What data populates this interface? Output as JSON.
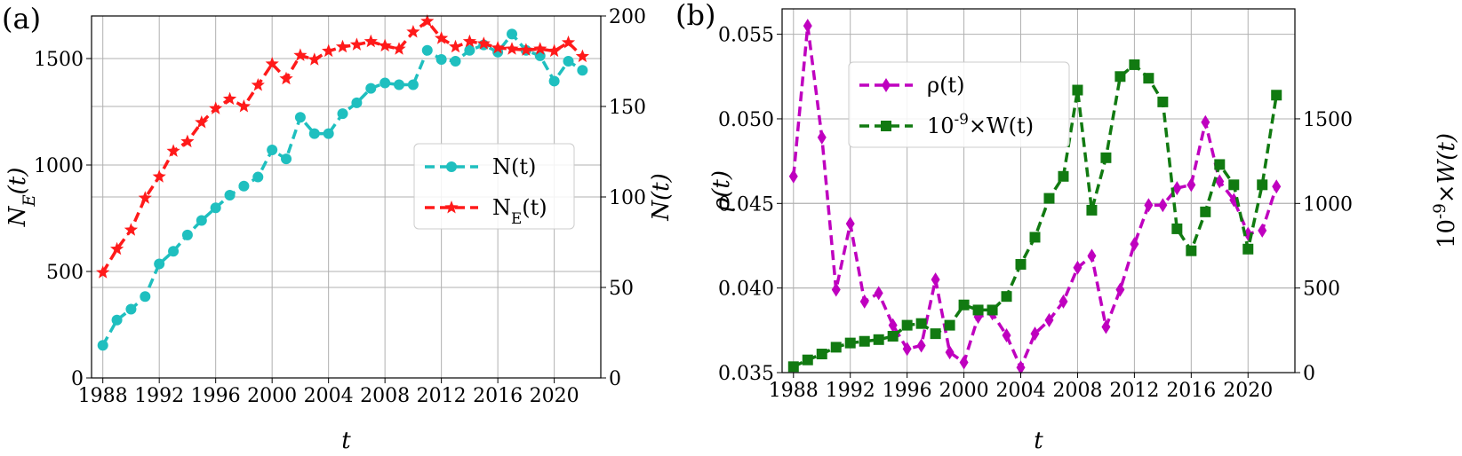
{
  "chart_data": [
    {
      "panel_label": "(a)",
      "type": "line",
      "xlabel": "t",
      "ylabel_left": "N_E(t)",
      "ylabel_right": "N(t)",
      "xlim": [
        1987.2,
        2023.3
      ],
      "ylim_left": [
        0,
        1700
      ],
      "ylim_right": [
        0,
        200
      ],
      "grid": true,
      "legend_position": "center-right",
      "x_ticks": [
        1988,
        1992,
        1996,
        2000,
        2004,
        2008,
        2012,
        2016,
        2020
      ],
      "y_ticks_left": [
        0,
        500,
        1000,
        1500
      ],
      "y_ticks_right": [
        0,
        50,
        100,
        150,
        200
      ],
      "x": [
        1988,
        1989,
        1990,
        1991,
        1992,
        1993,
        1994,
        1995,
        1996,
        1997,
        1998,
        1999,
        2000,
        2001,
        2002,
        2003,
        2004,
        2005,
        2006,
        2007,
        2008,
        2009,
        2010,
        2011,
        2012,
        2013,
        2014,
        2015,
        2016,
        2017,
        2018,
        2019,
        2020,
        2021,
        2022
      ],
      "series": [
        {
          "name": "N(t)",
          "legend_label": "N(t)",
          "axis": "right",
          "color": "#1fbfbf",
          "marker": "circle",
          "values": [
            18,
            32,
            38,
            45,
            63,
            70,
            79,
            87,
            94,
            101,
            106,
            111,
            126,
            121,
            144,
            135,
            135,
            146,
            152,
            160,
            163,
            162,
            162,
            181,
            176,
            175,
            181,
            184,
            180,
            190,
            181,
            178,
            164,
            175,
            170
          ]
        },
        {
          "name": "N_E(t)",
          "legend_label": "N_E(t)",
          "axis": "left",
          "color": "#ff1a1a",
          "marker": "star",
          "values": [
            495,
            605,
            695,
            845,
            945,
            1065,
            1110,
            1200,
            1265,
            1310,
            1275,
            1375,
            1475,
            1405,
            1515,
            1495,
            1535,
            1555,
            1565,
            1580,
            1560,
            1545,
            1625,
            1675,
            1595,
            1555,
            1580,
            1570,
            1550,
            1545,
            1540,
            1545,
            1535,
            1575,
            1510
          ]
        }
      ]
    },
    {
      "panel_label": "(b)",
      "type": "line",
      "xlabel": "t",
      "ylabel_left": "ρ(t)",
      "ylabel_right": "10^{-9}×W(t)",
      "xlim": [
        1987.2,
        2023.3
      ],
      "ylim_left": [
        0.035,
        0.0565
      ],
      "ylim_right": [
        0,
        2150
      ],
      "grid": true,
      "legend_position": "upper-left",
      "x_ticks": [
        1988,
        1992,
        1996,
        2000,
        2004,
        2008,
        2012,
        2016,
        2020
      ],
      "y_ticks_left": [
        0.035,
        0.04,
        0.045,
        0.05,
        0.055
      ],
      "y_tick_labels_left": [
        "0.035",
        "0.040",
        "0.045",
        "0.050",
        "0.055"
      ],
      "y_ticks_right": [
        0,
        500,
        1000,
        1500
      ],
      "x": [
        1988,
        1989,
        1990,
        1991,
        1992,
        1993,
        1994,
        1995,
        1996,
        1997,
        1998,
        1999,
        2000,
        2001,
        2002,
        2003,
        2004,
        2005,
        2006,
        2007,
        2008,
        2009,
        2010,
        2011,
        2012,
        2013,
        2014,
        2015,
        2016,
        2017,
        2018,
        2019,
        2020,
        2021,
        2022
      ],
      "series": [
        {
          "name": "rho(t)",
          "legend_label": "ρ(t)",
          "axis": "left",
          "color": "#bf00bf",
          "marker": "diamond",
          "values": [
            0.0466,
            0.0555,
            0.0489,
            0.0399,
            0.0438,
            0.0392,
            0.0397,
            0.0378,
            0.0364,
            0.0366,
            0.0405,
            0.0362,
            0.0356,
            0.0383,
            0.0385,
            0.0372,
            0.0353,
            0.0373,
            0.0381,
            0.0392,
            0.0412,
            0.0419,
            0.0377,
            0.0399,
            0.0426,
            0.0449,
            0.0449,
            0.0459,
            0.0461,
            0.0498,
            0.0463,
            0.0452,
            0.0432,
            0.0434,
            0.046
          ]
        },
        {
          "name": "W(t)",
          "legend_label": "10^{-9}×W(t)",
          "axis": "right",
          "color": "#117a11",
          "marker": "square",
          "values": [
            35,
            75,
            110,
            150,
            175,
            185,
            195,
            215,
            280,
            290,
            230,
            280,
            400,
            370,
            370,
            450,
            640,
            800,
            1030,
            1160,
            1670,
            960,
            1270,
            1750,
            1820,
            1740,
            1600,
            850,
            720,
            950,
            1230,
            1110,
            730,
            1110,
            1640
          ]
        }
      ]
    }
  ]
}
